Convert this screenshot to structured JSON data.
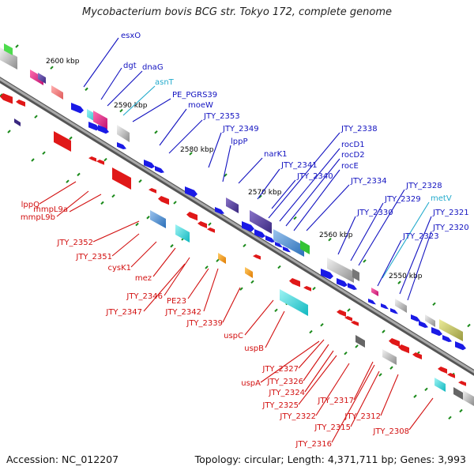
{
  "title": "Mycobacterium bovis BCG str. Tokyo 172, complete genome",
  "accession": "Accession: NC_012207",
  "topology": "Topology: circular; Length: 4,371,711 bp; Genes: 3,993",
  "colors": {
    "backbone": "#7d7d7d",
    "forward_label": "#1212c0",
    "reverse_label": "#d21010",
    "rna_label": "#22aacc",
    "forward_gene": "#1a1ae6",
    "reverse_gene": "#e01818",
    "tick": "#1a8a1a"
  },
  "ticks": [
    "2600 kbp",
    "2590 kbp",
    "2580 kbp",
    "2570 kbp",
    "2560 kbp",
    "2550 kbp"
  ],
  "forward_labels": [
    {
      "text": "esxO",
      "type": "gene"
    },
    {
      "text": "dgt",
      "type": "gene"
    },
    {
      "text": "dnaG",
      "type": "gene"
    },
    {
      "text": "asnT",
      "type": "rna"
    },
    {
      "text": "PE_PGRS39",
      "type": "gene"
    },
    {
      "text": "moeW",
      "type": "gene"
    },
    {
      "text": "JTY_2353",
      "type": "gene"
    },
    {
      "text": "JTY_2349",
      "type": "gene"
    },
    {
      "text": "lppP",
      "type": "gene"
    },
    {
      "text": "narK1",
      "type": "gene"
    },
    {
      "text": "JTY_2341",
      "type": "gene"
    },
    {
      "text": "JTY_2340",
      "type": "gene"
    },
    {
      "text": "JTY_2338",
      "type": "gene"
    },
    {
      "text": "rocD1",
      "type": "gene"
    },
    {
      "text": "rocD2",
      "type": "gene"
    },
    {
      "text": "rocE",
      "type": "gene"
    },
    {
      "text": "JTY_2334",
      "type": "gene"
    },
    {
      "text": "JTY_2330",
      "type": "gene"
    },
    {
      "text": "JTY_2329",
      "type": "gene"
    },
    {
      "text": "JTY_2328",
      "type": "gene"
    },
    {
      "text": "metV",
      "type": "rna"
    },
    {
      "text": "JTY_2323",
      "type": "gene"
    },
    {
      "text": "JTY_2321",
      "type": "gene"
    },
    {
      "text": "JTY_2320",
      "type": "gene"
    }
  ],
  "reverse_labels": [
    {
      "text": "lppQ"
    },
    {
      "text": "mmpL9b"
    },
    {
      "text": "mmpL9a"
    },
    {
      "text": "JTY_2352"
    },
    {
      "text": "JTY_2351"
    },
    {
      "text": "cysK1"
    },
    {
      "text": "mez"
    },
    {
      "text": "JTY_2346"
    },
    {
      "text": "JTY_2347"
    },
    {
      "text": "PE23"
    },
    {
      "text": "JTY_2342"
    },
    {
      "text": "JTY_2339"
    },
    {
      "text": "uspC"
    },
    {
      "text": "uspB"
    },
    {
      "text": "JTY_2327"
    },
    {
      "text": "JTY_2326"
    },
    {
      "text": "uspA"
    },
    {
      "text": "JTY_2324"
    },
    {
      "text": "JTY_2325"
    },
    {
      "text": "JTY_2322"
    },
    {
      "text": "JTY_2317"
    },
    {
      "text": "JTY_2315"
    },
    {
      "text": "JTY_2312"
    },
    {
      "text": "JTY_2316"
    },
    {
      "text": "JTY_2308"
    }
  ]
}
